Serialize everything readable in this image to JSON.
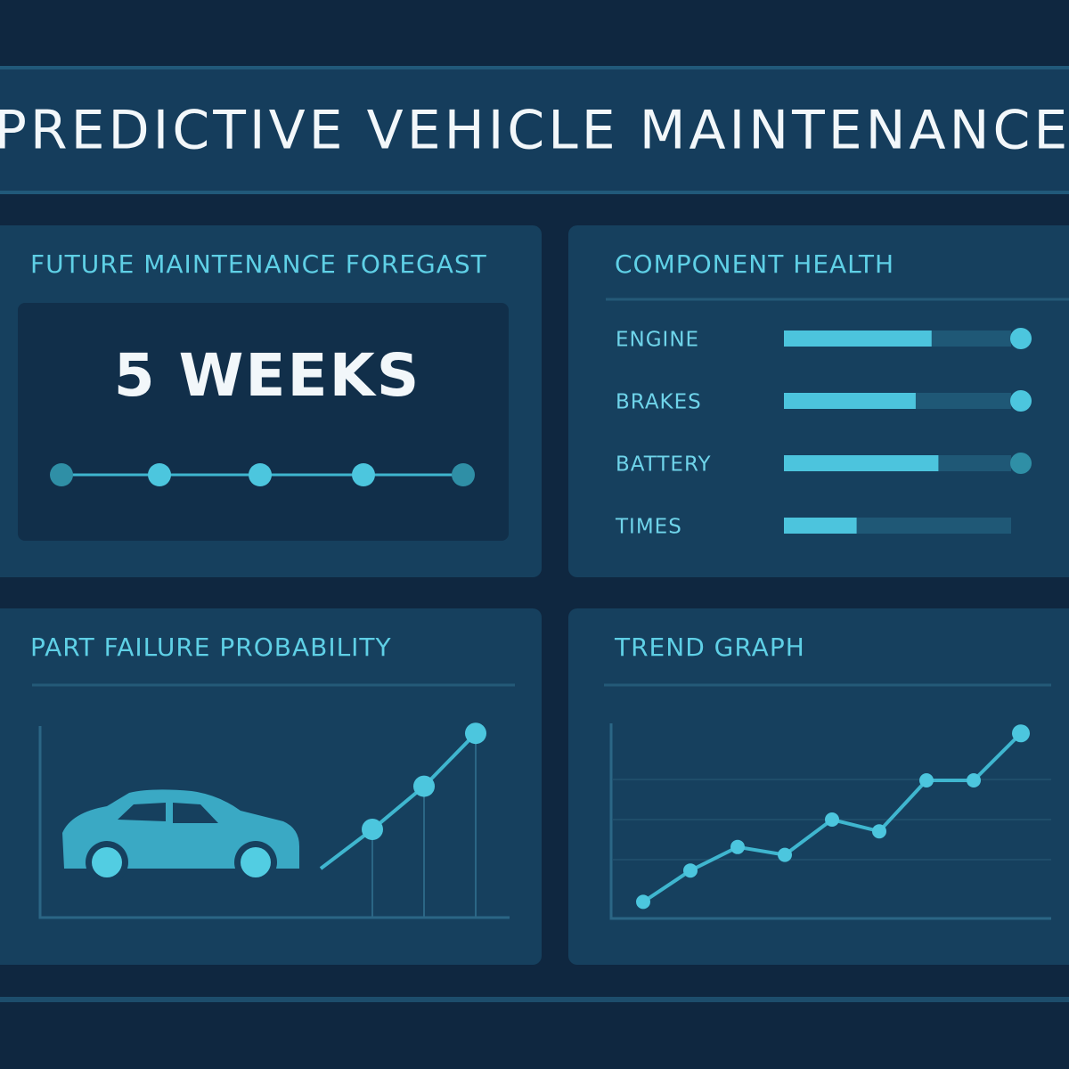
{
  "header": {
    "title": "PREDICTIVE VEHICLE MAINTENANCE"
  },
  "forecast": {
    "title": "FUTURE MAINTENANCE FOREGAST",
    "value": "5 WEEKS"
  },
  "component_health": {
    "title": "COMPONENT HEALTH",
    "xlim": [
      0,
      100
    ],
    "components": [
      {
        "label": "ENGINE",
        "value": 65
      },
      {
        "label": "BRAKES",
        "value": 58
      },
      {
        "label": "BATTERY",
        "value": 68
      },
      {
        "label": "TIMES",
        "value": 32
      }
    ]
  },
  "part_failure": {
    "title": "PART FAILURE PROBABILITY",
    "ylim": [
      0,
      100
    ],
    "values": [
      25,
      45,
      67,
      94
    ]
  },
  "trend": {
    "title": "TREND GRAPH",
    "ylim": [
      0,
      100
    ],
    "values": [
      8,
      24,
      36,
      32,
      50,
      44,
      70,
      70,
      94
    ]
  }
}
